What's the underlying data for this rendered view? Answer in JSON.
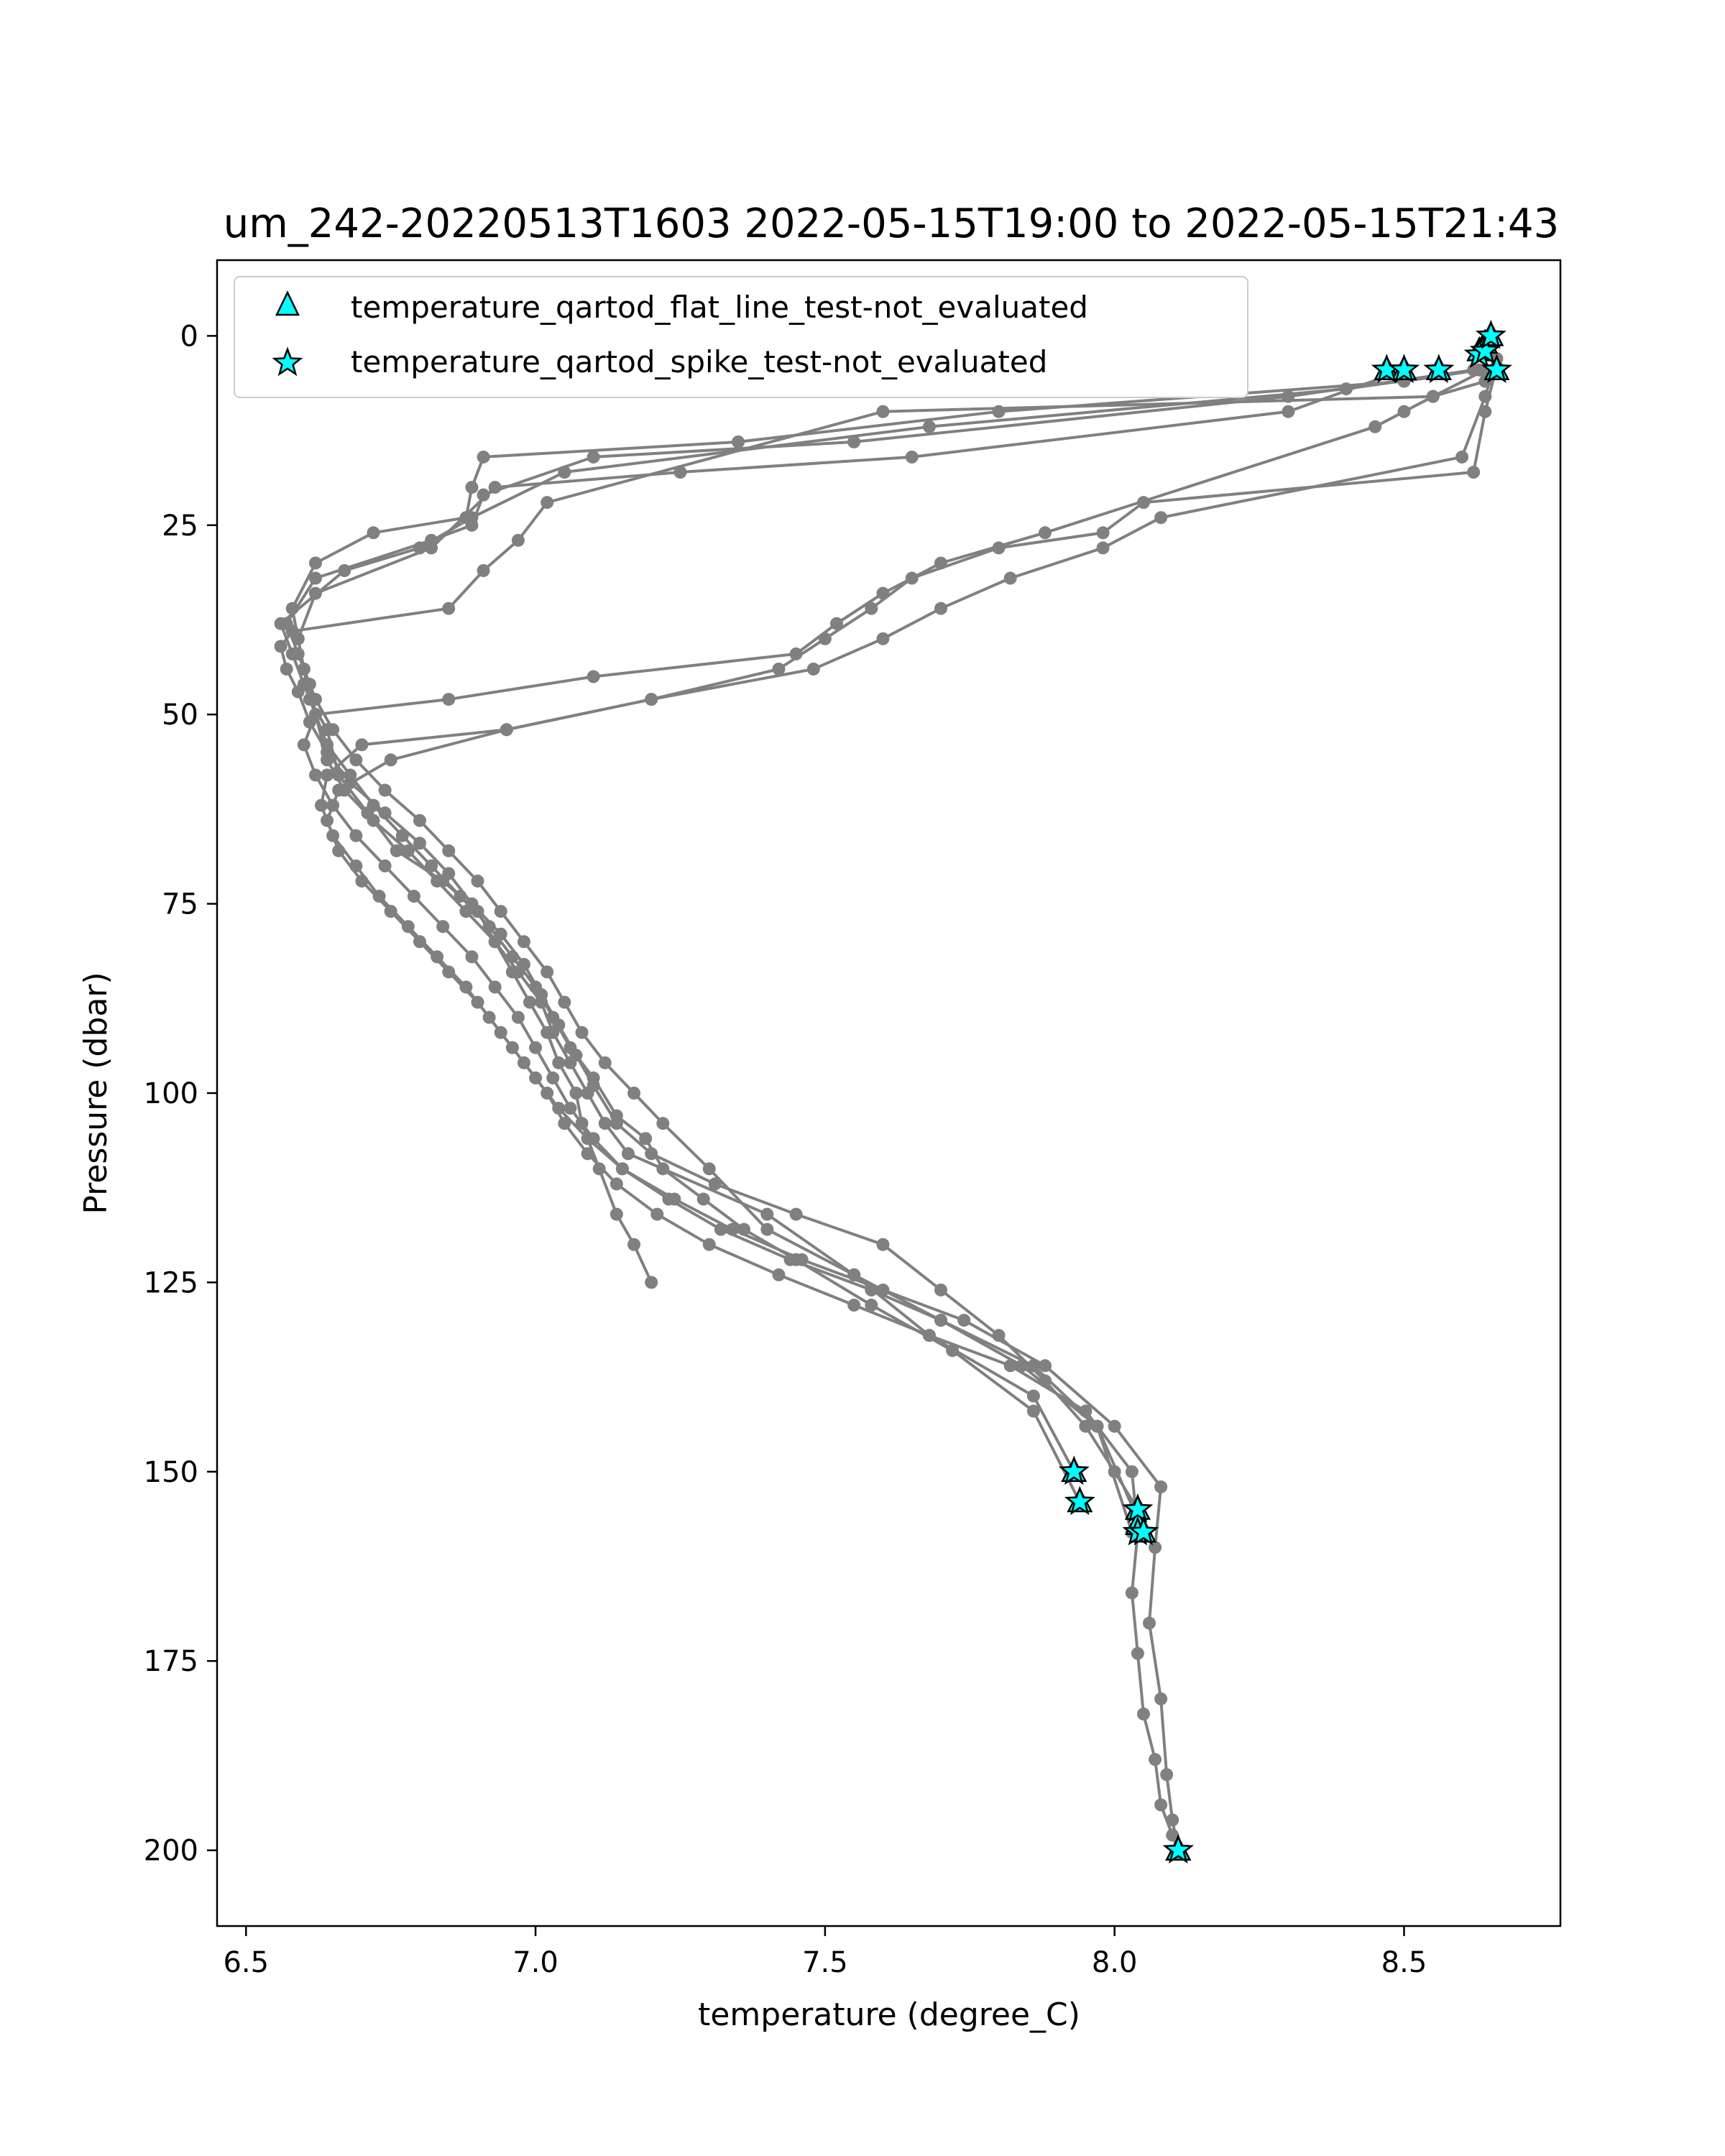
{
  "chart_data": {
    "type": "line",
    "title": "um_242-20220513T1603 2022-05-15T19:00 to 2022-05-15T21:43",
    "xlabel": "temperature (degree_C)",
    "ylabel": "Pressure (dbar)",
    "xlim": [
      6.45,
      8.77
    ],
    "ylim": [
      210,
      -10
    ],
    "y_inverted": true,
    "grid": false,
    "legend_placement": "top-left",
    "x_ticks": [
      "6.5",
      "7.0",
      "7.5",
      "8.0",
      "8.5"
    ],
    "x_tick_values": [
      6.5,
      7.0,
      7.5,
      8.0,
      8.5
    ],
    "y_ticks": [
      "0",
      "25",
      "50",
      "75",
      "100",
      "125",
      "150",
      "175",
      "200"
    ],
    "y_tick_values": [
      0,
      25,
      50,
      75,
      100,
      125,
      150,
      175,
      200
    ],
    "colors": {
      "profile_line": "#808080",
      "flag_marker": "#00ffff",
      "marker_edge": "#000000"
    },
    "profiles": [
      {
        "x": [
          8.63,
          8.5,
          7.8,
          7.35,
          6.91,
          6.89,
          6.88,
          6.72,
          6.62,
          6.58,
          6.59,
          6.6,
          6.61,
          6.64,
          6.66,
          6.71,
          6.76,
          6.84,
          6.9,
          6.93,
          6.96,
          6.99,
          7.02,
          7.04,
          7.07,
          7.08,
          7.11,
          7.14,
          7.17,
          7.2
        ],
        "y": [
          4.5,
          6,
          10,
          14,
          16,
          20,
          24,
          26,
          30,
          36,
          40,
          44,
          48,
          52,
          58,
          63,
          68,
          72,
          76,
          80,
          84,
          88,
          92,
          96,
          100,
          104,
          110,
          116,
          120,
          125
        ]
      },
      {
        "x": [
          8.62,
          8.3,
          7.55,
          7.1,
          6.91,
          6.89,
          6.82,
          6.62,
          6.57,
          6.59,
          6.61,
          6.62,
          6.64,
          6.67,
          6.72,
          6.78,
          6.83,
          6.88,
          6.93,
          6.97,
          7.01,
          7.03,
          7.06,
          7.09,
          7.12,
          7.16,
          7.4,
          7.55,
          7.68,
          7.86,
          7.93
        ],
        "y": [
          4.5,
          8,
          14,
          16,
          21,
          25,
          27,
          32,
          38,
          42,
          46,
          50,
          56,
          60,
          64,
          68,
          72,
          76,
          80,
          84,
          88,
          92,
          96,
          100,
          104,
          108,
          116,
          124,
          132,
          140,
          150
        ]
      },
      {
        "x": [
          8.63,
          8.4,
          7.68,
          7.05,
          6.89,
          6.8,
          6.67,
          6.56,
          6.58,
          6.6,
          6.62,
          6.64,
          6.68,
          6.72,
          6.77,
          6.82,
          6.87,
          6.92,
          6.96,
          7.0,
          7.03,
          7.06,
          7.1,
          7.14,
          7.19,
          7.22,
          7.29,
          7.36,
          7.45,
          7.58,
          7.72,
          7.86,
          7.94
        ],
        "y": [
          4.5,
          7,
          12,
          18,
          24,
          28,
          31,
          38,
          42,
          46,
          50,
          54,
          58,
          62,
          66,
          70,
          74,
          78,
          82,
          86,
          90,
          94,
          98,
          103,
          106,
          110,
          114,
          118,
          122,
          128,
          134,
          142,
          154
        ]
      },
      {
        "x": [
          8.64,
          8.55,
          7.6,
          7.02,
          6.97,
          6.91,
          6.85,
          6.58,
          6.56,
          6.57,
          6.59,
          6.61,
          6.64,
          6.68,
          6.74,
          6.8,
          6.85,
          6.89,
          6.94,
          6.98,
          7.01,
          7.04,
          7.07,
          7.1,
          7.14,
          7.2,
          7.31,
          7.45,
          7.6,
          7.7,
          7.8,
          7.88,
          7.95,
          8.0,
          8.04
        ],
        "y": [
          4.5,
          8,
          10,
          22,
          27,
          31,
          36,
          39,
          41,
          44,
          47,
          51,
          55,
          59,
          63,
          67,
          71,
          75,
          79,
          83,
          87,
          91,
          95,
          99,
          104,
          108,
          112,
          116,
          120,
          126,
          132,
          138,
          144,
          150,
          155
        ]
      },
      {
        "x": [
          8.5,
          8.3,
          7.65,
          7.25,
          6.93,
          6.82,
          6.62,
          6.59,
          6.6,
          6.62,
          6.65,
          6.69,
          6.74,
          6.8,
          6.85,
          6.9,
          6.94,
          6.98,
          7.02,
          7.05,
          7.08,
          7.12,
          7.17,
          7.22,
          7.3,
          7.4,
          7.55,
          7.7,
          7.86,
          7.97,
          8.03
        ],
        "y": [
          4.5,
          10,
          16,
          18,
          20,
          28,
          34,
          40,
          44,
          48,
          52,
          56,
          60,
          64,
          68,
          72,
          76,
          80,
          84,
          88,
          92,
          96,
          100,
          104,
          110,
          118,
          124,
          130,
          136,
          144,
          158
        ]
      },
      {
        "x": [
          8.66,
          8.64,
          8.55,
          8.5,
          8.45,
          7.88,
          7.7,
          7.6,
          7.52,
          7.45,
          7.1,
          6.85,
          6.62,
          6.6,
          6.62,
          6.65,
          6.69,
          6.74,
          6.79,
          6.84,
          6.89,
          6.93,
          6.97,
          7.0,
          7.03,
          7.06,
          7.1,
          7.15,
          7.23,
          7.32,
          7.44,
          7.58,
          7.7,
          7.84,
          7.97,
          8.05
        ],
        "y": [
          4.5,
          6,
          8,
          10,
          12,
          26,
          30,
          34,
          38,
          42,
          45,
          48,
          50,
          54,
          58,
          62,
          66,
          70,
          74,
          78,
          82,
          86,
          90,
          94,
          98,
          102,
          106,
          110,
          114,
          118,
          122,
          126,
          130,
          136,
          144,
          158
        ]
      },
      {
        "x": [
          8.65,
          8.66,
          8.64,
          8.62,
          8.05,
          7.98,
          7.8,
          7.65,
          7.58,
          7.5,
          7.42,
          7.2,
          6.95,
          6.7,
          6.64,
          6.63,
          6.65,
          6.69,
          6.73,
          6.78,
          6.83,
          6.88,
          6.92,
          6.96,
          7.0,
          7.04,
          7.09,
          7.15,
          7.24,
          7.34,
          7.46,
          7.6,
          7.74,
          7.88,
          8.0,
          8.08,
          8.07,
          8.06,
          8.08,
          8.09,
          8.1,
          8.11
        ],
        "y": [
          0,
          4,
          10,
          18,
          22,
          26,
          28,
          32,
          36,
          40,
          44,
          48,
          52,
          54,
          58,
          62,
          66,
          70,
          74,
          78,
          82,
          86,
          90,
          94,
          98,
          102,
          106,
          110,
          114,
          118,
          122,
          126,
          130,
          136,
          144,
          152,
          160,
          170,
          180,
          190,
          196,
          200
        ]
      },
      {
        "x": [
          8.65,
          8.66,
          8.64,
          8.6,
          8.08,
          7.98,
          7.82,
          7.7,
          7.6,
          7.48,
          7.2,
          6.95,
          6.75,
          6.66,
          6.64,
          6.66,
          6.7,
          6.75,
          6.8,
          6.85,
          6.9,
          6.94,
          6.98,
          7.02,
          7.05,
          7.09,
          7.14,
          7.21,
          7.3,
          7.42,
          7.55,
          7.68,
          7.82,
          7.95,
          8.03,
          8.04,
          8.03,
          8.04,
          8.05,
          8.07,
          8.08,
          8.1,
          8.11
        ],
        "y": [
          0,
          3,
          8,
          16,
          24,
          28,
          32,
          36,
          40,
          44,
          48,
          52,
          56,
          60,
          64,
          68,
          72,
          76,
          80,
          84,
          88,
          92,
          96,
          100,
          104,
          108,
          112,
          116,
          120,
          124,
          128,
          132,
          136,
          142,
          150,
          158,
          166,
          174,
          182,
          188,
          194,
          198,
          200
        ]
      }
    ],
    "flat_line_not_evaluated": {
      "label": "temperature_qartod_flat_line_test-not_evaluated",
      "x": [
        8.47,
        8.5,
        8.56,
        8.63,
        8.64,
        8.65,
        8.66,
        7.93,
        7.94,
        8.04,
        8.04,
        8.05,
        8.11,
        8.11
      ],
      "y": [
        4.5,
        4.5,
        4.5,
        2.0,
        1.0,
        0.0,
        4.5,
        150,
        154,
        155,
        157,
        158,
        200,
        200
      ]
    },
    "spike_not_evaluated": {
      "label": "temperature_qartod_spike_test-not_evaluated",
      "x": [
        8.47,
        8.5,
        8.56,
        8.63,
        8.64,
        8.65,
        8.66,
        7.93,
        7.94,
        8.04,
        8.04,
        8.05,
        8.11,
        8.11
      ],
      "y": [
        4.5,
        4.5,
        4.5,
        2.5,
        2.0,
        0.0,
        4.5,
        150,
        154,
        155,
        158,
        158,
        200,
        200
      ]
    }
  }
}
